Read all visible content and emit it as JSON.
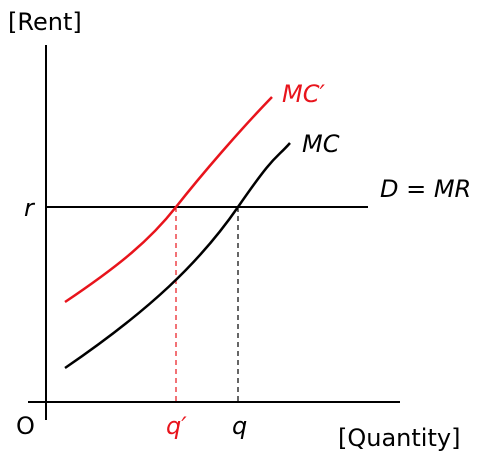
{
  "axes": {
    "y_label": "[Rent]",
    "x_label": "[Quantity]",
    "origin": "O"
  },
  "points": {
    "r": "r",
    "q_prime": "q′",
    "q": "q"
  },
  "curves": {
    "mc_prime": "MC′",
    "mc": "MC",
    "demand": "D = MR"
  }
}
